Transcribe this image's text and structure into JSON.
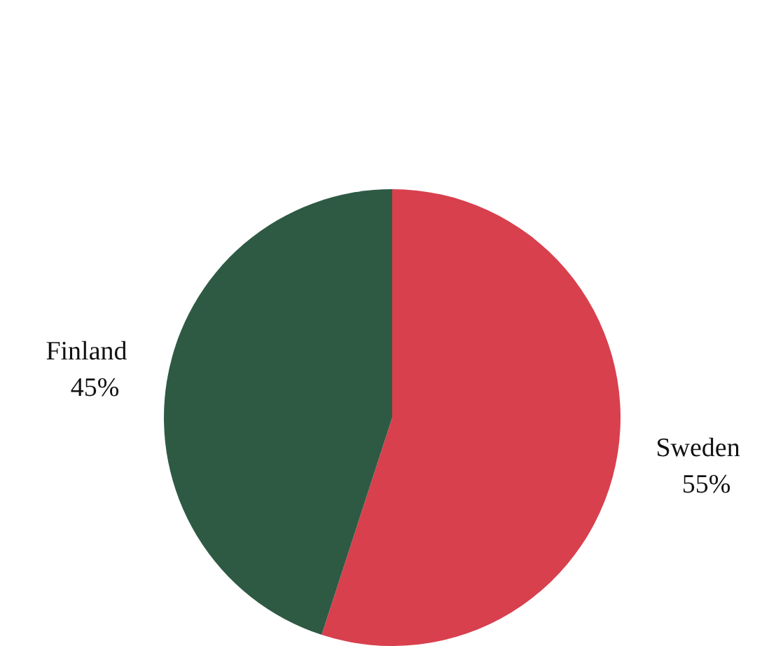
{
  "chart_data": {
    "type": "pie",
    "categories": [
      "Sweden",
      "Finland"
    ],
    "values": [
      55,
      45
    ],
    "value_labels": [
      "55%",
      "45%"
    ],
    "colors": [
      "#d8404e",
      "#2e5a44"
    ],
    "legend": false
  }
}
